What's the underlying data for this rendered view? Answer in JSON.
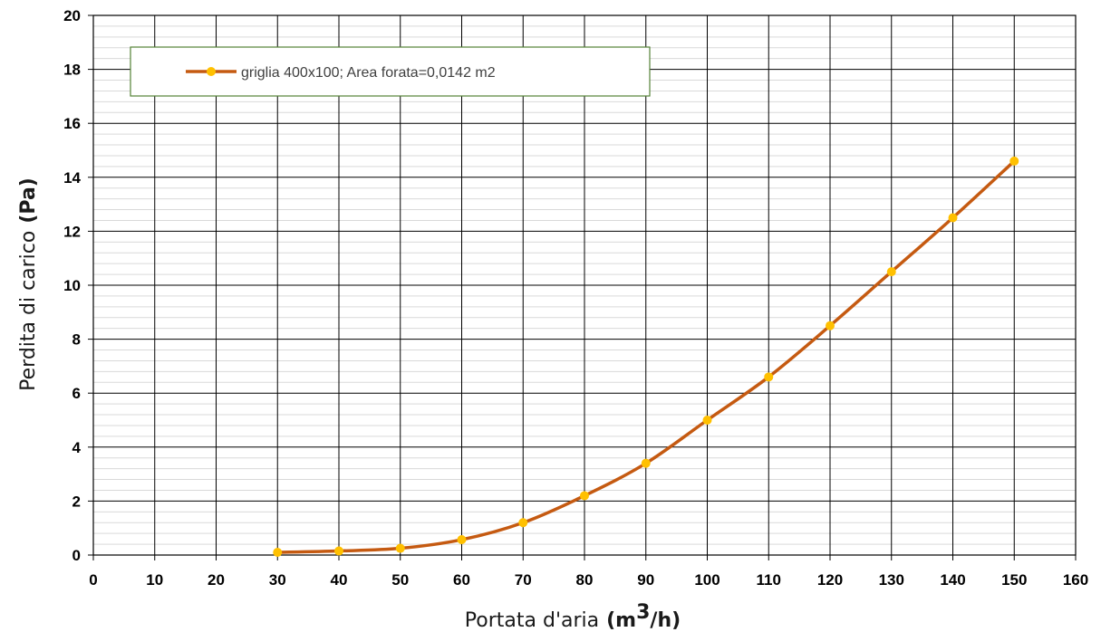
{
  "chart_data": {
    "type": "line",
    "x": [
      30,
      40,
      50,
      60,
      70,
      80,
      90,
      100,
      110,
      120,
      130,
      140,
      150
    ],
    "series": [
      {
        "name": "griglia 400x100;  Area forata=0,0142 m2",
        "values": [
          0.1,
          0.15,
          0.25,
          0.57,
          1.2,
          2.2,
          3.4,
          5.0,
          6.6,
          8.5,
          10.5,
          12.5,
          14.6
        ],
        "line_color": "#C55A11",
        "marker_color": "#FFC000"
      }
    ],
    "xlim": [
      0,
      160
    ],
    "ylim": [
      0,
      20
    ],
    "x_ticks": [
      "0",
      "10",
      "20",
      "30",
      "40",
      "50",
      "60",
      "70",
      "80",
      "90",
      "100",
      "110",
      "120",
      "130",
      "140",
      "150",
      "160"
    ],
    "y_ticks": [
      "0",
      "2",
      "4",
      "6",
      "8",
      "10",
      "12",
      "14",
      "16",
      "18",
      "20"
    ],
    "xlabel": "Portata d'aria",
    "xlabel_unit_base": "(m",
    "xlabel_unit_sup": "3",
    "xlabel_unit_end": "/h)",
    "ylabel": "Perdita di carico",
    "ylabel_unit": "(Pa)",
    "grid": true,
    "minor_grid": true,
    "legend_position": "top-left",
    "legend_border_color": "#548235"
  }
}
